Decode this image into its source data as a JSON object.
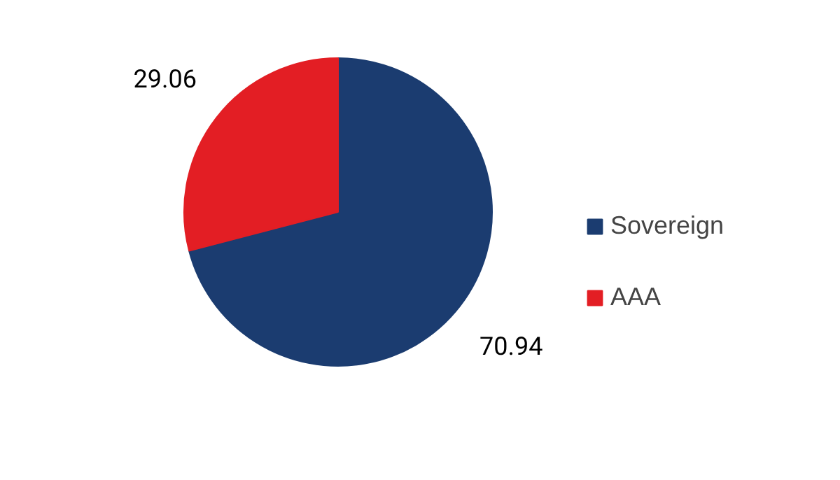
{
  "chart_data": {
    "type": "pie",
    "categories": [
      "Sovereign",
      "AAA"
    ],
    "values": [
      70.94,
      29.06
    ],
    "colors": [
      "#1b3c70",
      "#e31e24"
    ],
    "data_labels": true,
    "legend": "right"
  }
}
